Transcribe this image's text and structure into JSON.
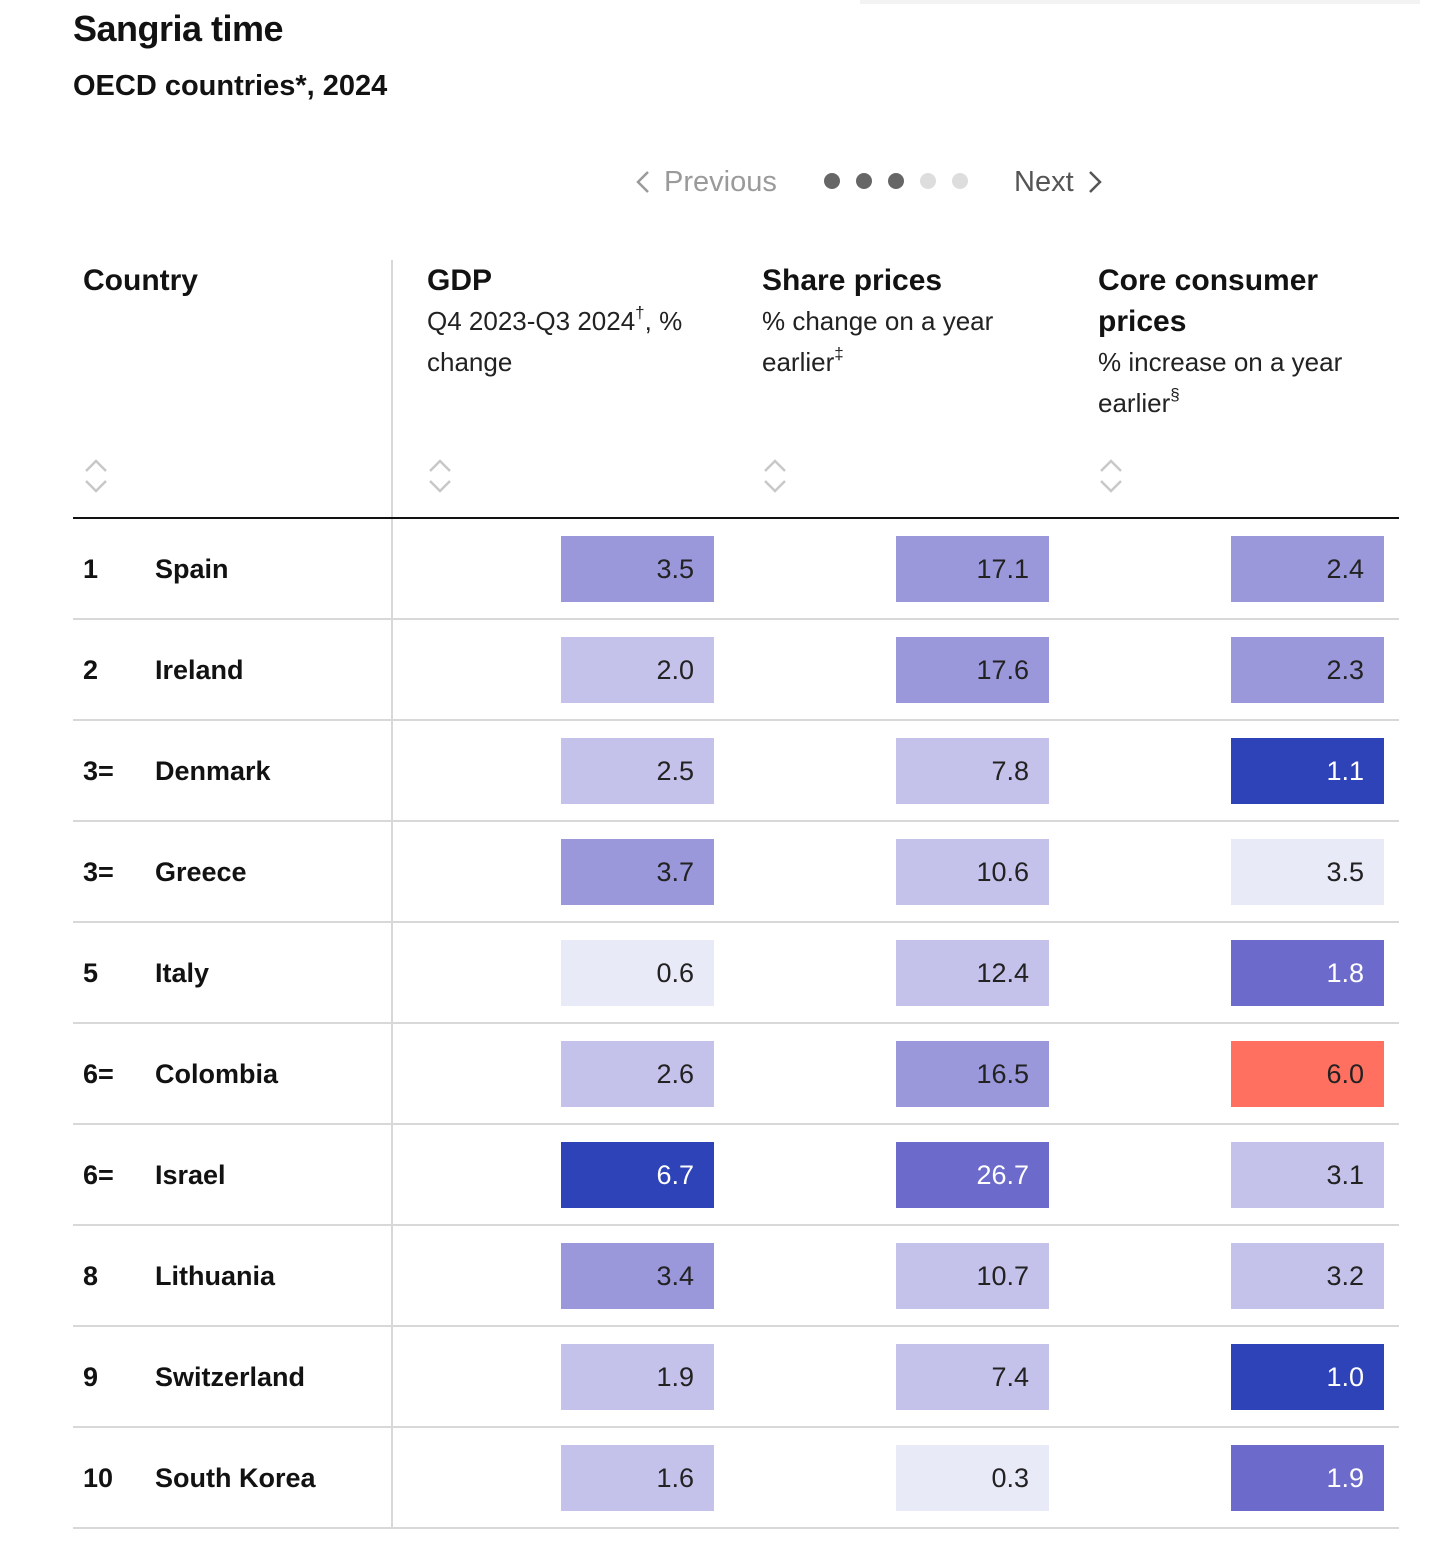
{
  "header": {
    "title": "Sangria time",
    "subtitle": "OECD countries*, 2024"
  },
  "pager": {
    "previous_label": "Previous",
    "next_label": "Next",
    "pages": 5,
    "current_page": 3
  },
  "columns": [
    {
      "key": "country",
      "label": "Country",
      "sub": "",
      "sup": ""
    },
    {
      "key": "gdp",
      "label": "GDP",
      "sub": "Q4 2023-Q3 2024",
      "sup": "†",
      "sub2": ", % change"
    },
    {
      "key": "share",
      "label": "Share prices",
      "sub": "% change on a year earlier",
      "sup": "‡",
      "sub2": ""
    },
    {
      "key": "core",
      "label": "Core consumer prices",
      "sub": "% increase on a year earlier",
      "sup": "§",
      "sub2": ""
    }
  ],
  "colors": {
    "very_light": "#e9eaf8",
    "light": "#c4c1ea",
    "medium": "#9a97db",
    "strong": "#6c6bcb",
    "dark": "#2d43b7",
    "warn": "#ff7060"
  },
  "chart_data": {
    "type": "table",
    "title": "Sangria time",
    "subtitle": "OECD countries*, 2024",
    "headers": [
      "Country",
      "GDP",
      "Share prices",
      "Core consumer prices"
    ],
    "rows": [
      {
        "rank": "1",
        "country": "Spain",
        "gdp": "3.5",
        "share": "17.1",
        "core": "2.4",
        "gdp_shade": "medium",
        "share_shade": "medium",
        "core_shade": "medium"
      },
      {
        "rank": "2",
        "country": "Ireland",
        "gdp": "2.0",
        "share": "17.6",
        "core": "2.3",
        "gdp_shade": "light",
        "share_shade": "medium",
        "core_shade": "medium"
      },
      {
        "rank": "3=",
        "country": "Denmark",
        "gdp": "2.5",
        "share": "7.8",
        "core": "1.1",
        "gdp_shade": "light",
        "share_shade": "light",
        "core_shade": "dark"
      },
      {
        "rank": "3=",
        "country": "Greece",
        "gdp": "3.7",
        "share": "10.6",
        "core": "3.5",
        "gdp_shade": "medium",
        "share_shade": "light",
        "core_shade": "very_light"
      },
      {
        "rank": "5",
        "country": "Italy",
        "gdp": "0.6",
        "share": "12.4",
        "core": "1.8",
        "gdp_shade": "very_light",
        "share_shade": "light",
        "core_shade": "strong"
      },
      {
        "rank": "6=",
        "country": "Colombia",
        "gdp": "2.6",
        "share": "16.5",
        "core": "6.0",
        "gdp_shade": "light",
        "share_shade": "medium",
        "core_shade": "warn"
      },
      {
        "rank": "6=",
        "country": "Israel",
        "gdp": "6.7",
        "share": "26.7",
        "core": "3.1",
        "gdp_shade": "dark",
        "share_shade": "strong",
        "core_shade": "light"
      },
      {
        "rank": "8",
        "country": "Lithuania",
        "gdp": "3.4",
        "share": "10.7",
        "core": "3.2",
        "gdp_shade": "medium",
        "share_shade": "light",
        "core_shade": "light"
      },
      {
        "rank": "9",
        "country": "Switzerland",
        "gdp": "1.9",
        "share": "7.4",
        "core": "1.0",
        "gdp_shade": "light",
        "share_shade": "light",
        "core_shade": "dark"
      },
      {
        "rank": "10",
        "country": "South Korea",
        "gdp": "1.6",
        "share": "0.3",
        "core": "1.9",
        "gdp_shade": "light",
        "share_shade": "very_light",
        "core_shade": "strong"
      }
    ]
  }
}
